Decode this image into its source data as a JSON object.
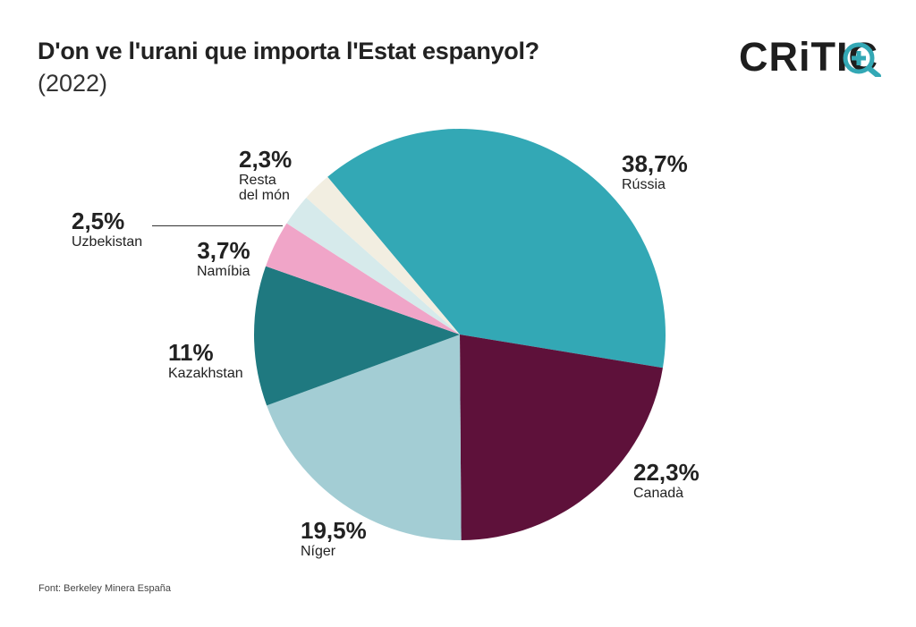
{
  "title": "D'on ve l'urani que importa l'Estat espanyol?",
  "subtitle": "(2022)",
  "logo": {
    "text": "CRiTIC",
    "icon": "plus-magnifier-icon",
    "accent": "#33a8b5"
  },
  "source": "Font: Berkeley Minera España",
  "chart_data": {
    "type": "pie",
    "title": "D'on ve l'urani que importa l'Estat espanyol?",
    "subtitle": "(2022)",
    "start_angle_deg": 320,
    "direction": "clockwise",
    "slices": [
      {
        "name": "Rússia",
        "value": 38.7,
        "pct_label": "38,7%",
        "color": "#33a8b5"
      },
      {
        "name": "Canadà",
        "value": 22.3,
        "pct_label": "22,3%",
        "color": "#5e113a"
      },
      {
        "name": "Níger",
        "value": 19.5,
        "pct_label": "19,5%",
        "color": "#a3cdd4"
      },
      {
        "name": "Kazakhstan",
        "value": 11,
        "pct_label": "11%",
        "color": "#1f7980"
      },
      {
        "name": "Namíbia",
        "value": 3.7,
        "pct_label": "3,7%",
        "color": "#f0a5c8"
      },
      {
        "name": "Uzbekistan",
        "value": 2.5,
        "pct_label": "2,5%",
        "color": "#d6eaeb"
      },
      {
        "name": "Resta\ndel món",
        "value": 2.3,
        "pct_label": "2,3%",
        "color": "#f2eee1"
      }
    ]
  }
}
